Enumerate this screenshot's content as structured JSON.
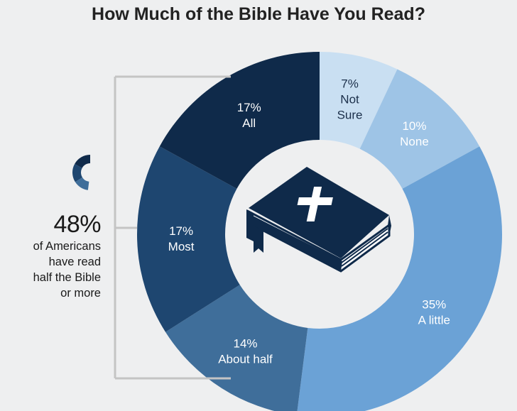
{
  "title": "How Much of the Bible Have You Read?",
  "colors": {
    "background": "#eeeff0",
    "all": "#0f2a4a",
    "most": "#1e4670",
    "about_half": "#3f6e9a",
    "a_little": "#6ba2d6",
    "none": "#9ec4e6",
    "not_sure": "#c9dff2",
    "bracket": "#c4c4c4",
    "book": "#0f2a4a"
  },
  "callout": {
    "value": "48%",
    "lines": [
      "of Americans",
      "have read",
      "half the Bible",
      "or more"
    ]
  },
  "book_icon": "bible-icon",
  "chart_data": {
    "type": "pie",
    "title": "How Much of the Bible Have You Read?",
    "donut": true,
    "slices": [
      {
        "label_lines": [
          "7%",
          "Not",
          "Sure"
        ],
        "category": "Not Sure",
        "value": 7,
        "color": "#c9dff2",
        "text_color": "#1b2f4a"
      },
      {
        "label_lines": [
          "10%",
          "None"
        ],
        "category": "None",
        "value": 10,
        "color": "#9ec4e6",
        "text_color": "#ffffff"
      },
      {
        "label_lines": [
          "35%",
          "A little"
        ],
        "category": "A little",
        "value": 35,
        "color": "#6ba2d6",
        "text_color": "#ffffff"
      },
      {
        "label_lines": [
          "14%",
          "About half"
        ],
        "category": "About half",
        "value": 14,
        "color": "#3f6e9a",
        "text_color": "#ffffff"
      },
      {
        "label_lines": [
          "17%",
          "Most"
        ],
        "category": "Most",
        "value": 17,
        "color": "#1e4670",
        "text_color": "#ffffff"
      },
      {
        "label_lines": [
          "17%",
          "All"
        ],
        "category": "All",
        "value": 17,
        "color": "#0f2a4a",
        "text_color": "#ffffff"
      }
    ]
  }
}
